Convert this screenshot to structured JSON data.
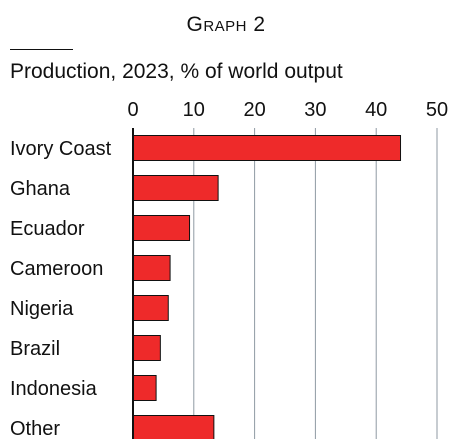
{
  "figure": {
    "heading": "Graph 2"
  },
  "chart_data": {
    "type": "bar",
    "orientation": "horizontal",
    "title": "Production, 2023, % of world output",
    "xlabel": "",
    "ylabel": "",
    "categories": [
      "Ivory Coast",
      "Ghana",
      "Ecuador",
      "Cameroon",
      "Nigeria",
      "Brazil",
      "Indonesia",
      "Other"
    ],
    "values": [
      44,
      14,
      9.3,
      6.1,
      5.8,
      4.5,
      3.8,
      13.3
    ],
    "xlim": [
      0,
      50
    ],
    "xticks": [
      "0",
      "10",
      "20",
      "30",
      "40",
      "50"
    ],
    "grid": "vertical",
    "axis_position": "top",
    "colors": {
      "bar": "#ee2a2a",
      "bar_edge": "#111111",
      "grid": "#8f9aa3",
      "text": "#111111"
    }
  }
}
